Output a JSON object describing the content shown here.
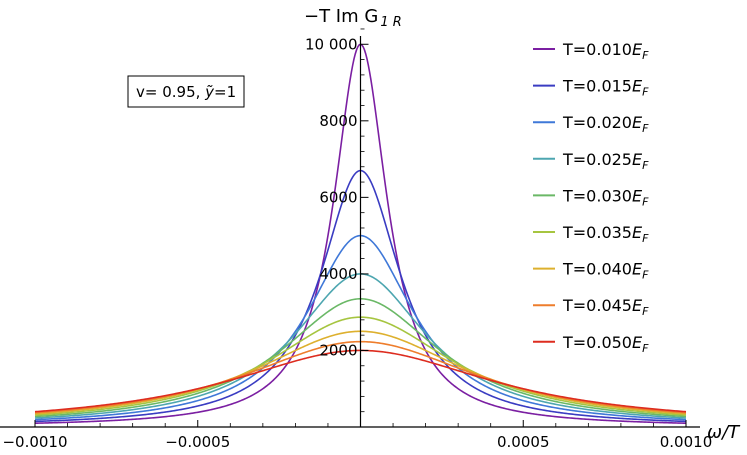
{
  "chart_data": {
    "type": "line",
    "title": "",
    "ylabel": "−T Im G",
    "ylabel_subscript": "1 R",
    "xlabel": "ω/T",
    "xlim": [
      -0.001,
      0.001
    ],
    "ylim": [
      0,
      11000
    ],
    "x_ticks": [
      -0.001,
      -0.0005,
      0.0005,
      0.001
    ],
    "x_tick_labels": [
      "−0.0010",
      "−0.0005",
      "0.0005",
      "0.0010"
    ],
    "y_ticks": [
      2000,
      4000,
      6000,
      8000,
      10000
    ],
    "y_tick_labels": [
      "2000",
      "4000",
      "6000",
      "8000",
      "10 000"
    ],
    "annotation": {
      "prefix": "v= 0.95, ",
      "sym": "ỹ",
      "suffix": "=1"
    },
    "legend_position": "right",
    "series": [
      {
        "name": "T=0.010",
        "subscript": "F",
        "color": "#7b1fa2",
        "peak": 10000
      },
      {
        "name": "T=0.015",
        "subscript": "F",
        "color": "#3a3cc2",
        "peak": 6700
      },
      {
        "name": "T=0.020",
        "subscript": "F",
        "color": "#3f78d8",
        "peak": 5000
      },
      {
        "name": "T=0.025",
        "subscript": "F",
        "color": "#4da6b0",
        "peak": 4000
      },
      {
        "name": "T=0.030",
        "subscript": "F",
        "color": "#6ab866",
        "peak": 3350
      },
      {
        "name": "T=0.035",
        "subscript": "F",
        "color": "#a6c540",
        "peak": 2870
      },
      {
        "name": "T=0.040",
        "subscript": "F",
        "color": "#ddb02e",
        "peak": 2500
      },
      {
        "name": "T=0.045",
        "subscript": "F",
        "color": "#ee7d2c",
        "peak": 2230
      },
      {
        "name": "T=0.050",
        "subscript": "F",
        "color": "#dd2c1f",
        "peak": 2000
      }
    ]
  }
}
